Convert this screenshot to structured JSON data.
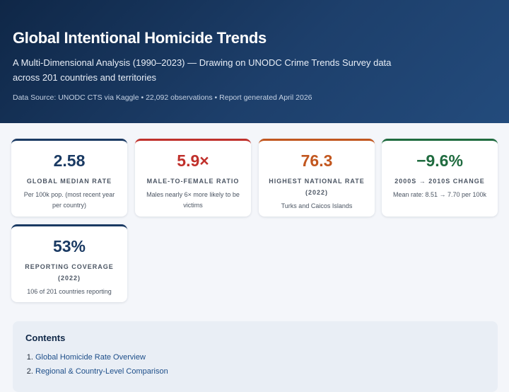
{
  "header": {
    "title": "Global Intentional Homicide Trends",
    "subtitle": "A Multi-Dimensional Analysis (1990–2023) — Drawing on UNODC Crime Trends Survey data across 201 countries and territories",
    "meta": "Data Source: UNODC CTS via Kaggle • 22,092 observations • Report generated April 2026"
  },
  "cards": [
    {
      "value": "2.58",
      "label": "GLOBAL MEDIAN RATE",
      "desc": "Per 100k pop. (most recent year per country)",
      "color": "#1a3a63"
    },
    {
      "value": "5.9×",
      "label": "MALE-TO-FEMALE RATIO",
      "desc": "Males nearly 6× more likely to be victims",
      "color": "#c0302b"
    },
    {
      "value": "76.3",
      "label": "HIGHEST NATIONAL RATE (2022)",
      "desc": "Turks and Caicos Islands",
      "color": "#c2571f"
    },
    {
      "value": "−9.6%",
      "label": "2000S → 2010S CHANGE",
      "desc": "Mean rate: 8.51 → 7.70 per 100k",
      "color": "#1f6b3f"
    },
    {
      "value": "53%",
      "label": "REPORTING COVERAGE (2022)",
      "desc": "106 of 201 countries reporting",
      "color": "#1a3a63"
    }
  ],
  "contents": {
    "title": "Contents",
    "items": [
      "Global Homicide Rate Overview",
      "Regional & Country-Level Comparison"
    ]
  }
}
